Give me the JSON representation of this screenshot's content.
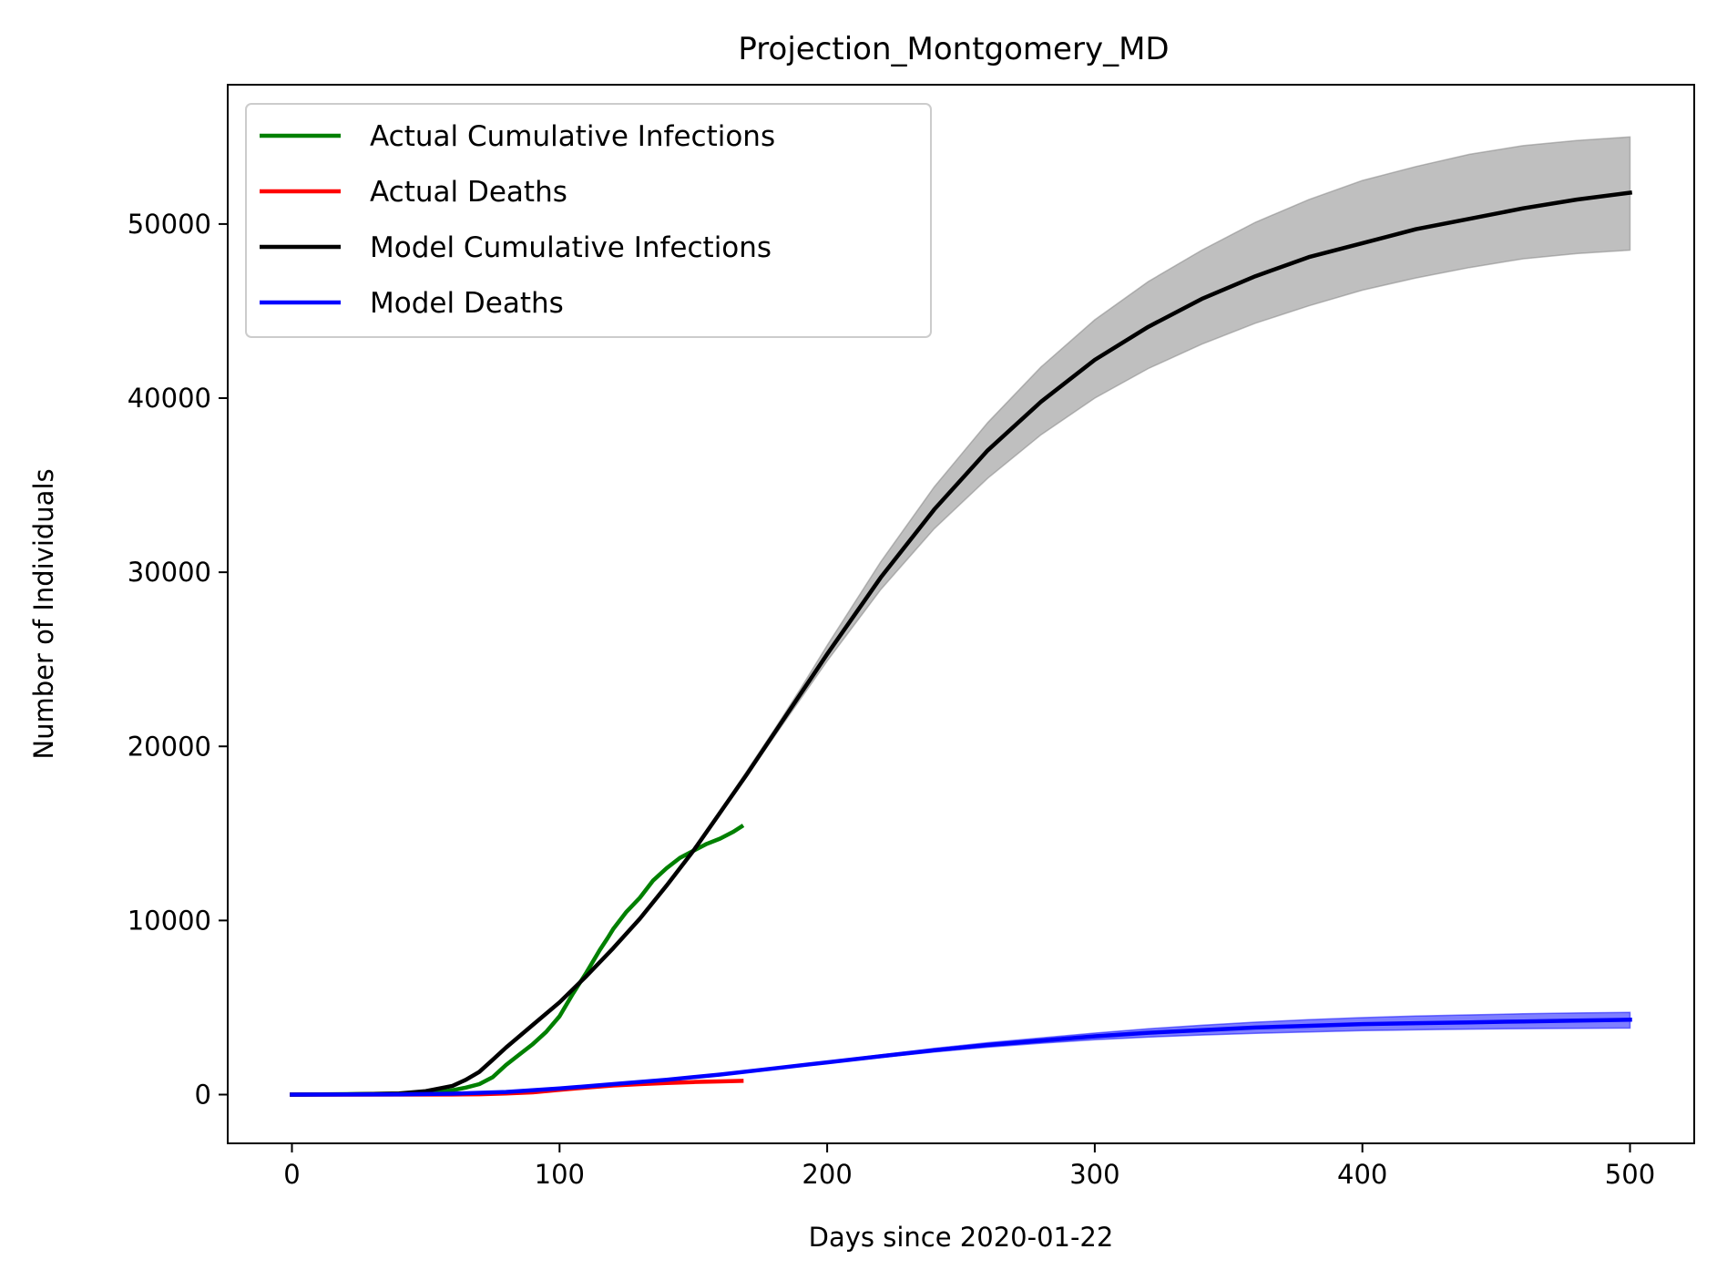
{
  "chart_data": {
    "type": "line",
    "title": "Projection_Montgomery_MD",
    "xlabel": "Days since 2020-01-22",
    "ylabel": "Number of Individuals",
    "xlim": [
      -24,
      524
    ],
    "ylim": [
      -2800,
      58000
    ],
    "x_ticks": [
      0,
      100,
      200,
      300,
      400,
      500
    ],
    "x_tick_labels": [
      "0",
      "100",
      "200",
      "300",
      "400",
      "500"
    ],
    "y_ticks": [
      0,
      10000,
      20000,
      30000,
      40000,
      50000
    ],
    "y_tick_labels": [
      "0",
      "10000",
      "20000",
      "30000",
      "40000",
      "50000"
    ],
    "grid": false,
    "legend_position": "top-left",
    "series": [
      {
        "name": "Actual Cumulative Infections",
        "color": "#008000",
        "x": [
          0,
          40,
          55,
          60,
          65,
          70,
          75,
          80,
          85,
          90,
          95,
          100,
          105,
          110,
          115,
          118,
          120,
          125,
          130,
          135,
          140,
          145,
          150,
          155,
          160,
          165,
          168
        ],
        "y": [
          0,
          50,
          150,
          250,
          400,
          600,
          1000,
          1700,
          2300,
          2900,
          3600,
          4500,
          5800,
          7000,
          8300,
          9000,
          9500,
          10500,
          11300,
          12300,
          13000,
          13600,
          14000,
          14400,
          14700,
          15100,
          15400
        ]
      },
      {
        "name": "Actual Deaths",
        "color": "#ff0000",
        "x": [
          0,
          60,
          70,
          80,
          90,
          100,
          110,
          120,
          130,
          140,
          150,
          160,
          168
        ],
        "y": [
          0,
          5,
          20,
          60,
          130,
          270,
          410,
          520,
          600,
          670,
          720,
          760,
          790
        ]
      },
      {
        "name": "Model Cumulative Infections",
        "color": "#000000",
        "x": [
          0,
          20,
          40,
          50,
          60,
          65,
          70,
          75,
          80,
          90,
          100,
          110,
          120,
          130,
          140,
          150,
          160,
          170,
          180,
          190,
          200,
          220,
          240,
          260,
          280,
          300,
          320,
          340,
          360,
          380,
          400,
          420,
          440,
          460,
          480,
          500
        ],
        "y": [
          0,
          10,
          60,
          200,
          500,
          850,
          1300,
          2000,
          2700,
          4000,
          5300,
          6800,
          8400,
          10100,
          12000,
          14000,
          16200,
          18400,
          20700,
          23000,
          25300,
          29700,
          33600,
          37000,
          39800,
          42200,
          44100,
          45700,
          47000,
          48100,
          48900,
          49700,
          50300,
          50900,
          51400,
          51800
        ]
      },
      {
        "name": "Model Deaths",
        "color": "#0000ff",
        "x": [
          0,
          40,
          60,
          80,
          100,
          120,
          140,
          160,
          180,
          200,
          220,
          240,
          260,
          280,
          300,
          320,
          340,
          360,
          380,
          400,
          420,
          440,
          460,
          480,
          500
        ],
        "y": [
          0,
          10,
          50,
          150,
          350,
          600,
          850,
          1150,
          1500,
          1850,
          2200,
          2550,
          2850,
          3100,
          3350,
          3550,
          3700,
          3850,
          3950,
          4050,
          4100,
          4150,
          4200,
          4250,
          4300
        ]
      }
    ],
    "bands": [
      {
        "series": "Model Cumulative Infections",
        "color": "#808080",
        "x": [
          0,
          20,
          40,
          50,
          60,
          65,
          70,
          75,
          80,
          90,
          100,
          110,
          120,
          130,
          140,
          150,
          160,
          170,
          180,
          190,
          200,
          220,
          240,
          260,
          280,
          300,
          320,
          340,
          360,
          380,
          400,
          420,
          440,
          460,
          480,
          500
        ],
        "lower": [
          0,
          10,
          60,
          200,
          500,
          850,
          1300,
          2000,
          2700,
          4000,
          5300,
          6800,
          8400,
          10100,
          12000,
          14000,
          16100,
          18300,
          20500,
          22700,
          24900,
          29000,
          32500,
          35400,
          37900,
          40000,
          41700,
          43100,
          44300,
          45300,
          46200,
          46900,
          47500,
          48000,
          48300,
          48500
        ],
        "upper": [
          0,
          10,
          60,
          200,
          500,
          850,
          1300,
          2000,
          2700,
          4000,
          5300,
          6800,
          8400,
          10100,
          12000,
          14000,
          16300,
          18600,
          20900,
          23300,
          25800,
          30600,
          34900,
          38600,
          41800,
          44500,
          46700,
          48500,
          50100,
          51400,
          52500,
          53300,
          54000,
          54500,
          54800,
          55000
        ]
      },
      {
        "series": "Model Deaths",
        "color": "#0000ff",
        "x": [
          0,
          40,
          60,
          80,
          100,
          120,
          140,
          160,
          180,
          200,
          220,
          240,
          260,
          280,
          300,
          320,
          340,
          360,
          380,
          400,
          420,
          440,
          460,
          480,
          500
        ],
        "lower": [
          0,
          10,
          50,
          150,
          350,
          600,
          850,
          1150,
          1480,
          1800,
          2130,
          2450,
          2720,
          2950,
          3150,
          3300,
          3420,
          3520,
          3600,
          3670,
          3720,
          3760,
          3790,
          3810,
          3820
        ],
        "upper": [
          0,
          10,
          50,
          150,
          350,
          600,
          850,
          1150,
          1520,
          1900,
          2280,
          2650,
          2980,
          3260,
          3530,
          3780,
          3980,
          4160,
          4300,
          4420,
          4510,
          4580,
          4640,
          4690,
          4720
        ]
      }
    ]
  }
}
